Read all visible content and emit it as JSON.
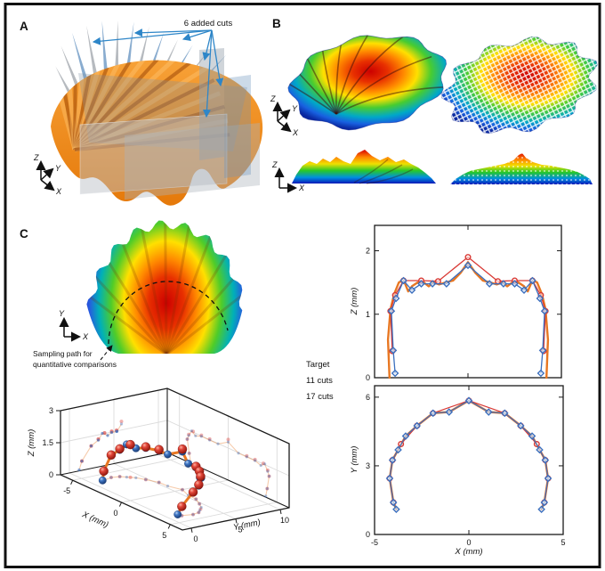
{
  "panels": {
    "a": {
      "label": "A",
      "annotation": "6 added cuts",
      "axes": {
        "x": "X",
        "y": "Y",
        "z": "Z"
      }
    },
    "b": {
      "label": "B",
      "axes_3d": {
        "x": "X",
        "y": "Y",
        "z": "Z"
      },
      "axes_side": {
        "x": "X",
        "z": "Z"
      }
    },
    "c": {
      "label": "C",
      "annotation_line1": "Sampling path for",
      "annotation_line2": "quantitative comparisons",
      "axes_top_view": {
        "x": "X",
        "y": "Y"
      }
    }
  },
  "legend": {
    "items": [
      {
        "label": "Target",
        "color": "#E87722"
      },
      {
        "label": "11 cuts",
        "color": "#D93A35"
      },
      {
        "label": "17 cuts",
        "color": "#3B6FBE"
      }
    ]
  },
  "colors": {
    "annotation_blue": "#2E86C8",
    "target_orange": "#E87722",
    "cuts11_red": "#D93A35",
    "cuts17_blue": "#3B6FBE",
    "frame_black": "#111111",
    "jet_colormap": [
      "#0a28a0",
      "#1860e0",
      "#00b0b8",
      "#48cc30",
      "#ffe000",
      "#ff8800",
      "#e83000",
      "#cc0000"
    ]
  },
  "chart_data": [
    {
      "id": "sampled-path-3d",
      "type": "scatter",
      "projection": "3d",
      "xlabel": "X (mm)",
      "ylabel": "Y (mm)",
      "zlabel": "Z (mm)",
      "xlim": [
        -6.25,
        6.25
      ],
      "ylim": [
        -1,
        11
      ],
      "zlim": [
        0,
        3
      ],
      "xticks": [
        -5,
        0,
        5
      ],
      "yticks": [
        0,
        5,
        10
      ],
      "zticks": [
        0,
        1.5,
        3
      ],
      "grid": true,
      "series": [
        {
          "name": "Target",
          "color": "#E87722",
          "marker": "none",
          "points": [
            [
              -3.85,
              1.1,
              0.05
            ],
            [
              -4.0,
              1.4,
              0.43
            ],
            [
              -4.2,
              2.45,
              1.05
            ],
            [
              -4.05,
              3.25,
              1.25
            ],
            [
              -3.75,
              3.7,
              1.53
            ],
            [
              -3.35,
              4.3,
              1.38
            ],
            [
              -2.75,
              4.75,
              1.48
            ],
            [
              -1.9,
              5.3,
              1.48
            ],
            [
              -1.05,
              5.35,
              1.48
            ],
            [
              0,
              5.85,
              1.78
            ],
            [
              1.05,
              5.35,
              1.48
            ],
            [
              1.9,
              5.3,
              1.48
            ],
            [
              2.75,
              4.75,
              1.48
            ],
            [
              3.35,
              4.3,
              1.38
            ],
            [
              3.75,
              3.7,
              1.53
            ],
            [
              4.05,
              3.25,
              1.25
            ],
            [
              4.2,
              2.45,
              1.05
            ],
            [
              4.0,
              1.4,
              0.43
            ],
            [
              3.85,
              1.1,
              0.05
            ]
          ]
        },
        {
          "name": "11 cuts",
          "color": "#D93A35",
          "marker": "sphere",
          "points": [
            [
              -4.0,
              1.4,
              0.43
            ],
            [
              -4.2,
              2.45,
              1.05
            ],
            [
              -4.05,
              3.25,
              1.3
            ],
            [
              -3.6,
              3.95,
              1.53
            ],
            [
              -2.75,
              4.75,
              1.53
            ],
            [
              -1.9,
              5.3,
              1.53
            ],
            [
              0,
              5.85,
              1.9
            ],
            [
              1.9,
              5.3,
              1.53
            ],
            [
              2.75,
              4.75,
              1.53
            ],
            [
              3.6,
              3.95,
              1.53
            ],
            [
              4.05,
              3.25,
              1.3
            ],
            [
              4.2,
              2.45,
              1.05
            ],
            [
              4.0,
              1.4,
              0.43
            ]
          ]
        },
        {
          "name": "17 cuts",
          "color": "#3B6FBE",
          "marker": "sphere",
          "points": [
            [
              -3.85,
              1.1,
              0.05
            ],
            [
              -4.0,
              1.4,
              0.43
            ],
            [
              -4.2,
              2.45,
              1.05
            ],
            [
              -4.05,
              3.25,
              1.25
            ],
            [
              -3.75,
              3.7,
              1.53
            ],
            [
              -3.35,
              4.3,
              1.38
            ],
            [
              -2.75,
              4.75,
              1.48
            ],
            [
              -1.9,
              5.3,
              1.48
            ],
            [
              -1.05,
              5.35,
              1.48
            ],
            [
              0,
              5.85,
              1.78
            ],
            [
              1.05,
              5.35,
              1.48
            ],
            [
              1.9,
              5.3,
              1.48
            ],
            [
              2.75,
              4.75,
              1.48
            ],
            [
              3.35,
              4.3,
              1.38
            ],
            [
              3.75,
              3.7,
              1.53
            ],
            [
              4.05,
              3.25,
              1.25
            ],
            [
              4.2,
              2.45,
              1.05
            ],
            [
              4.0,
              1.4,
              0.43
            ],
            [
              3.85,
              1.1,
              0.05
            ]
          ]
        }
      ]
    },
    {
      "id": "profile-z-vs-x",
      "type": "line",
      "xlabel": "X (mm)",
      "ylabel": "Z (mm)",
      "xlim": [
        -5,
        5
      ],
      "ylim": [
        0,
        2.4
      ],
      "xticks": [
        -5,
        0,
        5
      ],
      "yticks": [
        0,
        1,
        2
      ],
      "grid": false,
      "series": [
        {
          "name": "Target",
          "color": "#E87722",
          "marker": "none",
          "width": 2.4,
          "x": [
            -4.2,
            -4.28,
            -4.15,
            -3.95,
            -3.7,
            -3.45,
            -3.2,
            -3.0,
            -2.7,
            -2.45,
            -2.1,
            -1.85,
            -1.55,
            -1.2,
            -0.8,
            -0.4,
            0,
            0.4,
            0.8,
            1.2,
            1.55,
            1.85,
            2.1,
            2.45,
            2.7,
            3.0,
            3.2,
            3.45,
            3.7,
            3.95,
            4.15,
            4.28,
            4.2
          ],
          "y": [
            0,
            0.6,
            1.08,
            1.32,
            1.5,
            1.54,
            1.36,
            1.44,
            1.5,
            1.52,
            1.44,
            1.5,
            1.47,
            1.5,
            1.53,
            1.65,
            1.82,
            1.65,
            1.53,
            1.5,
            1.47,
            1.5,
            1.44,
            1.52,
            1.5,
            1.44,
            1.36,
            1.54,
            1.5,
            1.32,
            1.08,
            0.6,
            0
          ]
        },
        {
          "name": "11 cuts",
          "color": "#D93A35",
          "marker": "circle",
          "width": 1.3,
          "x": [
            -4.05,
            -4.15,
            -3.9,
            -3.45,
            -2.5,
            -1.6,
            0,
            1.6,
            2.5,
            3.45,
            3.9,
            4.15,
            4.05
          ],
          "y": [
            0.42,
            1.05,
            1.3,
            1.53,
            1.53,
            1.52,
            1.9,
            1.52,
            1.53,
            1.53,
            1.3,
            1.05,
            0.42
          ]
        },
        {
          "name": "17 cuts",
          "color": "#3B6FBE",
          "marker": "diamond",
          "width": 1.3,
          "x": [
            -3.9,
            -4.0,
            -4.1,
            -3.85,
            -3.45,
            -3.0,
            -2.5,
            -1.9,
            -1.15,
            0,
            1.15,
            1.9,
            2.5,
            3.0,
            3.45,
            3.85,
            4.1,
            4.0,
            3.9
          ],
          "y": [
            0.07,
            0.43,
            1.05,
            1.25,
            1.53,
            1.38,
            1.48,
            1.48,
            1.48,
            1.77,
            1.48,
            1.48,
            1.48,
            1.38,
            1.53,
            1.25,
            1.05,
            0.43,
            0.07
          ]
        }
      ]
    },
    {
      "id": "path-y-vs-x",
      "type": "line",
      "xlabel": "X (mm)",
      "ylabel": "Y (mm)",
      "xlim": [
        -5,
        5
      ],
      "ylim": [
        0,
        6.5
      ],
      "xticks": [
        -5,
        0,
        5
      ],
      "yticks": [
        0,
        3,
        6
      ],
      "grid": false,
      "series": [
        {
          "name": "Target",
          "color": "#E87722",
          "marker": "none",
          "width": 2.4,
          "x": [
            -3.85,
            -4.0,
            -4.2,
            -4.05,
            -3.75,
            -3.35,
            -2.75,
            -1.9,
            -1.05,
            0,
            1.05,
            1.9,
            2.75,
            3.35,
            3.75,
            4.05,
            4.2,
            4.0,
            3.85
          ],
          "y": [
            1.1,
            1.4,
            2.45,
            3.25,
            3.7,
            4.3,
            4.75,
            5.3,
            5.35,
            5.85,
            5.35,
            5.3,
            4.75,
            4.3,
            3.7,
            3.25,
            2.45,
            1.4,
            1.1
          ]
        },
        {
          "name": "11 cuts",
          "color": "#D93A35",
          "marker": "circle",
          "width": 1.2,
          "x": [
            -4.0,
            -4.2,
            -4.05,
            -3.6,
            -2.75,
            -1.9,
            0,
            1.9,
            2.75,
            3.6,
            4.05,
            4.2,
            4.0
          ],
          "y": [
            1.4,
            2.45,
            3.25,
            3.95,
            4.75,
            5.3,
            5.85,
            5.3,
            4.75,
            3.95,
            3.25,
            2.45,
            1.4
          ]
        },
        {
          "name": "17 cuts",
          "color": "#3B6FBE",
          "marker": "diamond",
          "width": 1.2,
          "x": [
            -3.85,
            -4.0,
            -4.2,
            -4.05,
            -3.75,
            -3.35,
            -2.75,
            -1.9,
            -1.05,
            0,
            1.05,
            1.9,
            2.75,
            3.35,
            3.75,
            4.05,
            4.2,
            4.0,
            3.85
          ],
          "y": [
            1.1,
            1.4,
            2.45,
            3.25,
            3.7,
            4.3,
            4.75,
            5.3,
            5.35,
            5.85,
            5.35,
            5.3,
            4.75,
            4.3,
            3.7,
            3.25,
            2.45,
            1.4,
            1.1
          ]
        }
      ]
    }
  ]
}
